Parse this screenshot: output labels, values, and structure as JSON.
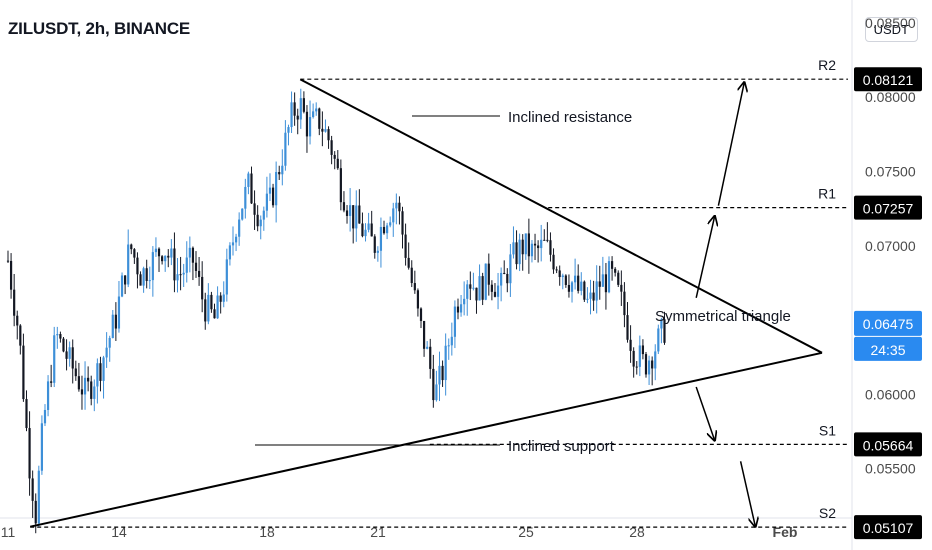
{
  "header": {
    "title": "ZILUSDT, 2h, BINANCE",
    "currency": "USDT"
  },
  "colors": {
    "up": "#3d8fd8",
    "down": "#131722",
    "line": "#000000",
    "price_label_bg": "#2a8af0",
    "level_label_bg": "#000000",
    "axis_text": "#4a4a4a"
  },
  "chart_data": {
    "type": "candlestick",
    "ylim": [
      0.0496,
      0.086
    ],
    "y_ticks": [
      "0.08500",
      "0.08000",
      "0.07500",
      "0.07000",
      "0.06000",
      "0.05500"
    ],
    "x_ticks": [
      "11",
      "14",
      "18",
      "21",
      "25",
      "28",
      "Feb"
    ],
    "price_path": [
      [
        11.0,
        0.069
      ],
      [
        11.3,
        0.064
      ],
      [
        11.55,
        0.056
      ],
      [
        11.75,
        0.052
      ],
      [
        11.95,
        0.058
      ],
      [
        12.3,
        0.064
      ],
      [
        12.7,
        0.062
      ],
      [
        13.1,
        0.06
      ],
      [
        13.5,
        0.062
      ],
      [
        13.9,
        0.065
      ],
      [
        14.3,
        0.07
      ],
      [
        14.6,
        0.068
      ],
      [
        14.9,
        0.069
      ],
      [
        15.2,
        0.07
      ],
      [
        15.6,
        0.068
      ],
      [
        16.0,
        0.069
      ],
      [
        16.3,
        0.066
      ],
      [
        16.6,
        0.065
      ],
      [
        16.9,
        0.068
      ],
      [
        17.2,
        0.072
      ],
      [
        17.5,
        0.074
      ],
      [
        17.8,
        0.072
      ],
      [
        18.1,
        0.073
      ],
      [
        18.4,
        0.076
      ],
      [
        18.7,
        0.079
      ],
      [
        18.9,
        0.0795
      ],
      [
        19.1,
        0.078
      ],
      [
        19.4,
        0.0785
      ],
      [
        19.7,
        0.077
      ],
      [
        20.0,
        0.074
      ],
      [
        20.3,
        0.072
      ],
      [
        20.6,
        0.071
      ],
      [
        20.9,
        0.07
      ],
      [
        21.2,
        0.072
      ],
      [
        21.5,
        0.073
      ],
      [
        21.8,
        0.069
      ],
      [
        22.1,
        0.065
      ],
      [
        22.35,
        0.0625
      ],
      [
        22.55,
        0.06
      ],
      [
        22.8,
        0.062
      ],
      [
        23.1,
        0.066
      ],
      [
        23.4,
        0.068
      ],
      [
        23.7,
        0.067
      ],
      [
        24.0,
        0.068
      ],
      [
        24.3,
        0.067
      ],
      [
        24.6,
        0.069
      ],
      [
        24.9,
        0.07
      ],
      [
        25.2,
        0.0695
      ],
      [
        25.5,
        0.07
      ],
      [
        25.8,
        0.069
      ],
      [
        26.1,
        0.068
      ],
      [
        26.4,
        0.067
      ],
      [
        26.7,
        0.066
      ],
      [
        27.0,
        0.0675
      ],
      [
        27.3,
        0.068
      ],
      [
        27.6,
        0.066
      ],
      [
        27.9,
        0.063
      ],
      [
        28.2,
        0.062
      ],
      [
        28.45,
        0.063
      ],
      [
        28.8,
        0.0647
      ]
    ],
    "candle_stride_days": 0.0833,
    "current_price": {
      "value": 0.06475,
      "label": "0.06475",
      "countdown": "24:35"
    },
    "levels": [
      {
        "name": "R2",
        "value": 0.08121,
        "label": "0.08121"
      },
      {
        "name": "R1",
        "value": 0.07257,
        "label": "0.07257"
      },
      {
        "name": "S1",
        "value": 0.05664,
        "label": "0.05664"
      },
      {
        "name": "S2",
        "value": 0.05107,
        "label": "0.05107"
      }
    ],
    "trendlines": {
      "resistance": {
        "from": [
          18.9,
          0.0812
        ],
        "to": [
          33.0,
          0.0628
        ]
      },
      "support": {
        "from": [
          11.6,
          0.0511
        ],
        "to": [
          33.0,
          0.0628
        ]
      }
    },
    "annotations": [
      {
        "text": "Inclined resistance"
      },
      {
        "text": "Symmetrical triangle"
      },
      {
        "text": "Inclined support"
      }
    ],
    "projection_arrows": [
      {
        "from": [
          30.2,
          0.0727
        ],
        "to": [
          30.9,
          0.081
        ]
      },
      {
        "from": [
          29.6,
          0.0665
        ],
        "to": [
          30.1,
          0.072
        ]
      },
      {
        "from": [
          29.6,
          0.0605
        ],
        "to": [
          30.1,
          0.0569
        ]
      },
      {
        "from": [
          30.8,
          0.0555
        ],
        "to": [
          31.2,
          0.0511
        ]
      }
    ]
  }
}
